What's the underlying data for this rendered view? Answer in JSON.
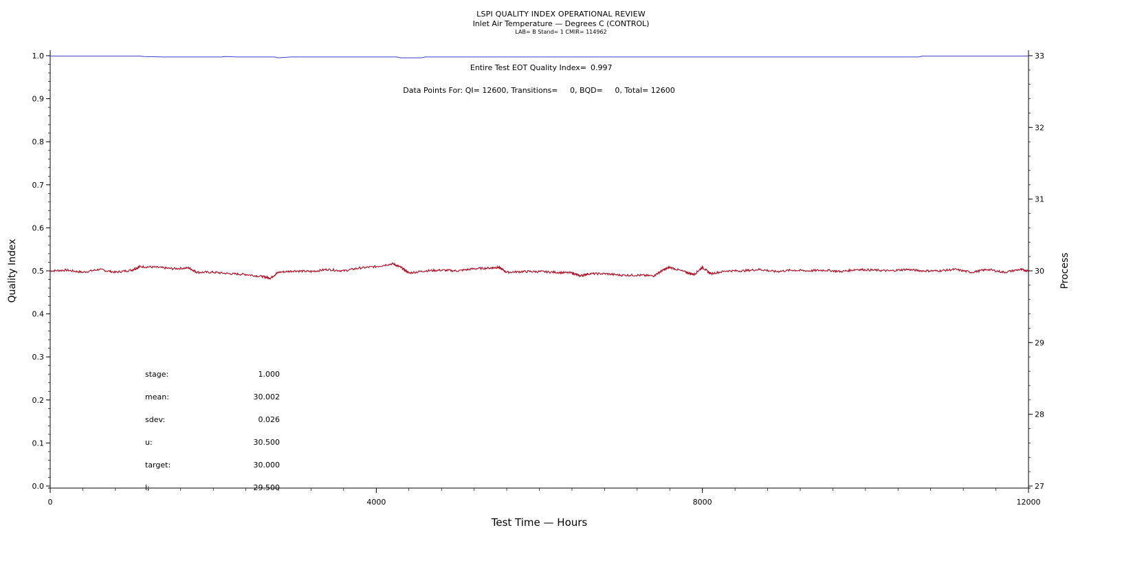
{
  "header": {
    "title": "LSPI QUALITY INDEX OPERATIONAL REVIEW",
    "subtitle": "Inlet Air Temperature — Degrees C (CONTROL)",
    "info": "LAB= B Stand= 1 CMIR= 114962"
  },
  "annotations": {
    "eot_label": "Entire Test EOT Quality Index=",
    "eot_value": "0.997",
    "points_line": "Data Points For: QI= 12600, Transitions=     0, BQD=     0, Total= 12600"
  },
  "stats": [
    {
      "label": "stage:",
      "value": "1.000"
    },
    {
      "label": "mean:",
      "value": "30.002"
    },
    {
      "label": "sdev:",
      "value": "0.026"
    },
    {
      "label": "u:",
      "value": "30.500"
    },
    {
      "label": "target:",
      "value": "30.000"
    },
    {
      "label": "l:",
      "value": "29.500"
    }
  ],
  "colors": {
    "quality_index_line": "#3a3ad0",
    "process_line": "#b0122a",
    "axis": "#000000"
  },
  "chart_data": {
    "type": "line",
    "xlabel": "Test Time — Hours",
    "ylabel": "Quality Index",
    "y2label": "Process",
    "xlim": [
      0,
      12000
    ],
    "ylim": [
      0,
      1
    ],
    "y2lim": [
      27,
      33
    ],
    "x_ticks": [
      "0",
      "4000",
      "8000",
      "12000"
    ],
    "y_ticks": [
      "0.0",
      "0.1",
      "0.2",
      "0.3",
      "0.4",
      "0.5",
      "0.6",
      "0.7",
      "0.8",
      "0.9",
      "1.0"
    ],
    "y2_ticks": [
      "27",
      "28",
      "29",
      "30",
      "31",
      "32",
      "33"
    ],
    "grid": false,
    "series": [
      {
        "axis": "left",
        "x": [
          0,
          1100,
          1150,
          1400,
          2100,
          2150,
          2300,
          2750,
          2800,
          2950,
          4250,
          4300,
          4550,
          4600,
          10650,
          10700,
          12000
        ],
        "y": [
          0.999,
          0.999,
          0.998,
          0.997,
          0.997,
          0.998,
          0.997,
          0.997,
          0.995,
          0.997,
          0.997,
          0.995,
          0.995,
          0.997,
          0.997,
          0.999,
          0.999
        ]
      },
      {
        "axis": "right",
        "x": [
          0,
          200,
          400,
          600,
          800,
          1000,
          1100,
          1300,
          1500,
          1700,
          1800,
          2000,
          2200,
          2400,
          2600,
          2700,
          2800,
          3000,
          3200,
          3400,
          3600,
          3800,
          4000,
          4200,
          4300,
          4400,
          4600,
          4800,
          5000,
          5200,
          5400,
          5500,
          5600,
          5800,
          6000,
          6200,
          6400,
          6500,
          6600,
          6800,
          7000,
          7200,
          7400,
          7500,
          7600,
          7800,
          7900,
          8000,
          8100,
          8300,
          8500,
          8700,
          8900,
          9100,
          9300,
          9500,
          9700,
          9900,
          10100,
          10300,
          10500,
          10700,
          10900,
          11100,
          11300,
          11500,
          11700,
          11900,
          12000
        ],
        "y": [
          30.0,
          30.01,
          29.98,
          30.02,
          29.98,
          30.01,
          30.06,
          30.05,
          30.03,
          30.04,
          29.98,
          29.98,
          29.96,
          29.95,
          29.92,
          29.9,
          29.98,
          30.0,
          29.99,
          30.02,
          30.0,
          30.04,
          30.06,
          30.1,
          30.05,
          29.97,
          30.0,
          30.01,
          30.0,
          30.03,
          30.04,
          30.05,
          29.98,
          29.99,
          29.99,
          29.98,
          29.97,
          29.93,
          29.96,
          29.96,
          29.94,
          29.94,
          29.93,
          30.0,
          30.05,
          29.98,
          29.95,
          30.05,
          29.96,
          30.0,
          30.0,
          30.02,
          29.99,
          30.01,
          30.0,
          30.01,
          29.99,
          30.02,
          30.01,
          30.0,
          30.02,
          30.0,
          30.0,
          30.02,
          29.98,
          30.02,
          29.98,
          30.02,
          30.0
        ]
      }
    ]
  }
}
